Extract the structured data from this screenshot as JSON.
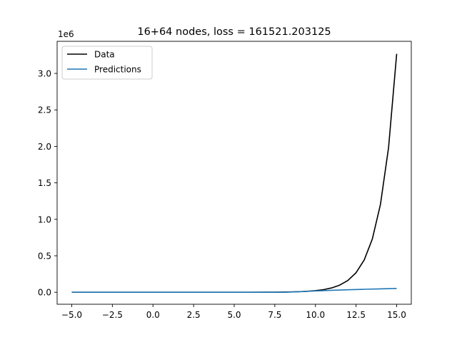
{
  "chart_data": {
    "type": "line",
    "title": "16+64 nodes, loss = 161521.203125",
    "xlabel": "",
    "ylabel": "",
    "y_offset_label": "1e6",
    "xlim": [
      -5.9,
      15.9
    ],
    "ylim": [
      -0.164,
      3.44
    ],
    "y_scale_multiplier": 1000000,
    "x_ticks": [
      -5.0,
      -2.5,
      0.0,
      2.5,
      5.0,
      7.5,
      10.0,
      12.5,
      15.0
    ],
    "x_tick_labels": [
      "−5.0",
      "−2.5",
      "0.0",
      "2.5",
      "5.0",
      "7.5",
      "10.0",
      "12.5",
      "15.0"
    ],
    "y_ticks": [
      0.0,
      0.5,
      1.0,
      1.5,
      2.0,
      2.5,
      3.0
    ],
    "y_tick_labels": [
      "0.0",
      "0.5",
      "1.0",
      "1.5",
      "2.0",
      "2.5",
      "3.0"
    ],
    "legend_position": "top-left",
    "grid": false,
    "series": [
      {
        "name": "Data",
        "color": "#000000",
        "x": [
          -5,
          -2.5,
          0,
          2.5,
          5,
          6,
          7,
          7.5,
          8,
          8.5,
          9,
          9.5,
          10,
          10.5,
          11,
          11.5,
          12,
          12.5,
          13,
          13.5,
          14,
          14.5,
          15
        ],
        "y": [
          0.0,
          0.0,
          0.0,
          0.0,
          0.0001,
          0.0004,
          0.0011,
          0.0018,
          0.003,
          0.0049,
          0.0081,
          0.0134,
          0.022,
          0.0363,
          0.0599,
          0.0987,
          0.1627,
          0.2683,
          0.4424,
          0.7294,
          1.2026,
          1.9827,
          3.269
        ]
      },
      {
        "name": "Predictions",
        "color": "#1f77b4",
        "x": [
          -5,
          0,
          5,
          7.5,
          8,
          9,
          10,
          11,
          12,
          13,
          14,
          15
        ],
        "y": [
          0.0,
          0.0,
          0.0,
          0.0,
          0.0005,
          0.008,
          0.018,
          0.027,
          0.034,
          0.041,
          0.047,
          0.053
        ]
      }
    ]
  }
}
